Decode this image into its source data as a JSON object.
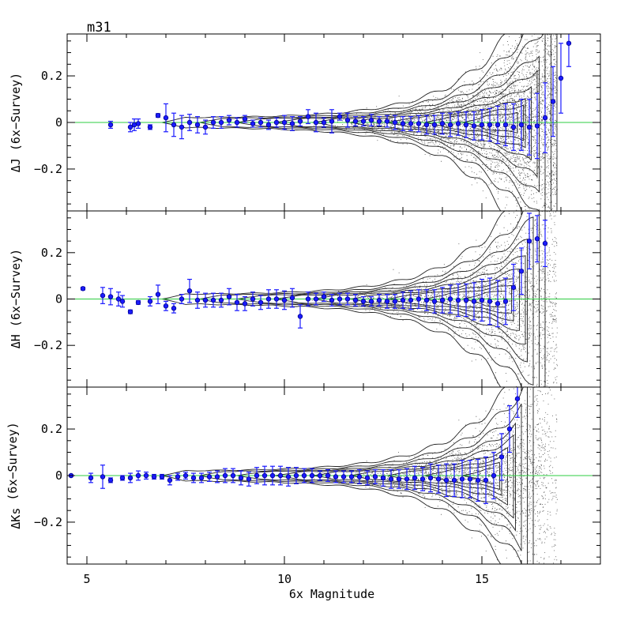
{
  "chart_data": {
    "type": "scatter",
    "title": "m31",
    "xlabel": "6x Magnitude",
    "xlim": [
      4.5,
      18
    ],
    "ylim": [
      -0.38,
      0.38
    ],
    "x_ticks": [
      5,
      10,
      15
    ],
    "y_ticks": [
      -0.2,
      0,
      0.2
    ],
    "y_tick_labels": [
      "−0.2",
      "0",
      "0.2"
    ],
    "zero_line_color": "#2ecc40",
    "point_color": "#1a1aff",
    "panels": [
      {
        "ylabel": "ΔJ (6x−Survey)",
        "series": [
          {
            "x": [
              5.6,
              6.1,
              6.2,
              6.3,
              6.6,
              6.8,
              7.0,
              7.2,
              7.4,
              7.6,
              7.8,
              8.0,
              8.2,
              8.4,
              8.6,
              8.8,
              9.0,
              9.2,
              9.4,
              9.6,
              9.8,
              10.0,
              10.2,
              10.4,
              10.6,
              10.8,
              11.0,
              11.2,
              11.4,
              11.6,
              11.8,
              12.0,
              12.2,
              12.4,
              12.6,
              12.8,
              13.0,
              13.2,
              13.4,
              13.6,
              13.8,
              14.0,
              14.2,
              14.4,
              14.6,
              14.8,
              15.0,
              15.2,
              15.4,
              15.6,
              15.8,
              16.0,
              16.2,
              16.4,
              16.6,
              16.8,
              17.0,
              17.2
            ],
            "y": [
              -0.01,
              -0.02,
              -0.01,
              -0.005,
              -0.02,
              0.03,
              0.02,
              -0.01,
              -0.02,
              0.0,
              -0.01,
              -0.02,
              0.0,
              0.0,
              0.01,
              0.0,
              0.015,
              -0.005,
              0.0,
              -0.01,
              0.0,
              0.0,
              -0.005,
              0.005,
              0.025,
              0.0,
              0.0,
              0.005,
              0.025,
              0.01,
              0.005,
              0.005,
              0.01,
              0.005,
              0.005,
              0.0,
              -0.005,
              -0.005,
              -0.005,
              -0.01,
              -0.01,
              -0.005,
              -0.01,
              -0.005,
              -0.01,
              -0.015,
              -0.01,
              -0.01,
              -0.01,
              -0.01,
              -0.02,
              -0.01,
              -0.02,
              -0.015,
              0.02,
              0.09,
              0.19,
              0.34
            ],
            "err": [
              0.015,
              0.02,
              0.025,
              0.02,
              0.01,
              0.008,
              0.06,
              0.05,
              0.05,
              0.035,
              0.035,
              0.03,
              0.025,
              0.025,
              0.02,
              0.02,
              0.015,
              0.015,
              0.02,
              0.02,
              0.02,
              0.03,
              0.03,
              0.02,
              0.03,
              0.04,
              0.02,
              0.05,
              0.015,
              0.03,
              0.02,
              0.02,
              0.025,
              0.02,
              0.025,
              0.03,
              0.03,
              0.03,
              0.035,
              0.04,
              0.04,
              0.045,
              0.05,
              0.05,
              0.055,
              0.06,
              0.065,
              0.07,
              0.08,
              0.09,
              0.1,
              0.11,
              0.12,
              0.14,
              0.15,
              0.15,
              0.15,
              0.1
            ]
          }
        ]
      },
      {
        "ylabel": "ΔH (6x−Survey)",
        "series": [
          {
            "x": [
              4.9,
              5.4,
              5.6,
              5.8,
              5.9,
              6.1,
              6.3,
              6.6,
              6.8,
              7.0,
              7.2,
              7.4,
              7.6,
              7.8,
              8.0,
              8.2,
              8.4,
              8.6,
              8.8,
              9.0,
              9.2,
              9.4,
              9.6,
              9.8,
              10.0,
              10.2,
              10.4,
              10.6,
              10.8,
              11.0,
              11.2,
              11.4,
              11.6,
              11.8,
              12.0,
              12.2,
              12.4,
              12.6,
              12.8,
              13.0,
              13.2,
              13.4,
              13.6,
              13.8,
              14.0,
              14.2,
              14.4,
              14.6,
              14.8,
              15.0,
              15.2,
              15.4,
              15.6,
              15.8,
              16.0,
              16.2,
              16.4,
              16.6
            ],
            "y": [
              0.045,
              0.015,
              0.01,
              0.0,
              -0.01,
              -0.055,
              -0.015,
              -0.01,
              0.02,
              -0.03,
              -0.04,
              0.0,
              0.035,
              -0.005,
              -0.005,
              -0.005,
              -0.005,
              0.01,
              -0.015,
              -0.02,
              0.0,
              -0.015,
              0.0,
              0.0,
              -0.005,
              0.005,
              -0.075,
              0.0,
              0.0,
              0.01,
              -0.005,
              0.0,
              0.0,
              -0.005,
              -0.01,
              -0.01,
              -0.005,
              -0.01,
              -0.01,
              -0.005,
              -0.005,
              0.0,
              -0.005,
              -0.01,
              -0.005,
              0.0,
              -0.005,
              -0.005,
              -0.01,
              -0.005,
              -0.01,
              -0.02,
              -0.01,
              0.05,
              0.12,
              0.25,
              0.26,
              0.24
            ],
            "err": [
              0.006,
              0.035,
              0.035,
              0.03,
              0.025,
              0.008,
              0.008,
              0.02,
              0.04,
              0.02,
              0.02,
              0.02,
              0.05,
              0.035,
              0.03,
              0.03,
              0.03,
              0.035,
              0.035,
              0.03,
              0.03,
              0.03,
              0.04,
              0.04,
              0.04,
              0.04,
              0.05,
              0.03,
              0.025,
              0.02,
              0.025,
              0.025,
              0.025,
              0.025,
              0.02,
              0.02,
              0.025,
              0.03,
              0.03,
              0.035,
              0.04,
              0.04,
              0.045,
              0.05,
              0.055,
              0.06,
              0.07,
              0.07,
              0.08,
              0.09,
              0.1,
              0.1,
              0.1,
              0.1,
              0.1,
              0.12,
              0.1,
              0.1
            ]
          }
        ]
      },
      {
        "ylabel": "ΔK_s (6x−Survey)",
        "series": [
          {
            "x": [
              4.6,
              5.1,
              5.4,
              5.6,
              5.9,
              6.1,
              6.3,
              6.5,
              6.7,
              6.9,
              7.1,
              7.3,
              7.5,
              7.7,
              7.9,
              8.1,
              8.3,
              8.5,
              8.7,
              8.9,
              9.1,
              9.3,
              9.5,
              9.7,
              9.9,
              10.1,
              10.3,
              10.5,
              10.7,
              10.9,
              11.1,
              11.3,
              11.5,
              11.7,
              11.9,
              12.1,
              12.3,
              12.5,
              12.7,
              12.9,
              13.1,
              13.3,
              13.5,
              13.7,
              13.9,
              14.1,
              14.3,
              14.5,
              14.7,
              14.9,
              15.1,
              15.3,
              15.5,
              15.7,
              15.9
            ],
            "y": [
              0.0,
              -0.01,
              -0.005,
              -0.02,
              -0.01,
              -0.01,
              0.0,
              0.0,
              -0.005,
              -0.005,
              -0.02,
              -0.005,
              0.0,
              -0.01,
              -0.01,
              -0.005,
              -0.005,
              0.0,
              0.0,
              -0.01,
              -0.015,
              0.0,
              0.0,
              0.0,
              0.0,
              -0.005,
              0.0,
              0.0,
              0.0,
              0.0,
              0.0,
              -0.005,
              -0.005,
              -0.005,
              -0.005,
              -0.01,
              -0.005,
              -0.01,
              -0.015,
              -0.015,
              -0.015,
              -0.01,
              -0.015,
              -0.01,
              -0.015,
              -0.02,
              -0.02,
              -0.015,
              -0.015,
              -0.02,
              -0.02,
              0.0,
              0.08,
              0.2,
              0.33
            ],
            "err": [
              0.004,
              0.02,
              0.05,
              0.01,
              0.01,
              0.02,
              0.02,
              0.015,
              0.01,
              0.01,
              0.02,
              0.015,
              0.015,
              0.02,
              0.02,
              0.02,
              0.025,
              0.03,
              0.03,
              0.03,
              0.03,
              0.035,
              0.04,
              0.04,
              0.04,
              0.04,
              0.035,
              0.03,
              0.03,
              0.02,
              0.025,
              0.025,
              0.025,
              0.025,
              0.03,
              0.03,
              0.03,
              0.035,
              0.04,
              0.04,
              0.045,
              0.05,
              0.05,
              0.06,
              0.06,
              0.07,
              0.07,
              0.08,
              0.08,
              0.09,
              0.1,
              0.1,
              0.1,
              0.1,
              0.08
            ]
          }
        ]
      }
    ]
  }
}
